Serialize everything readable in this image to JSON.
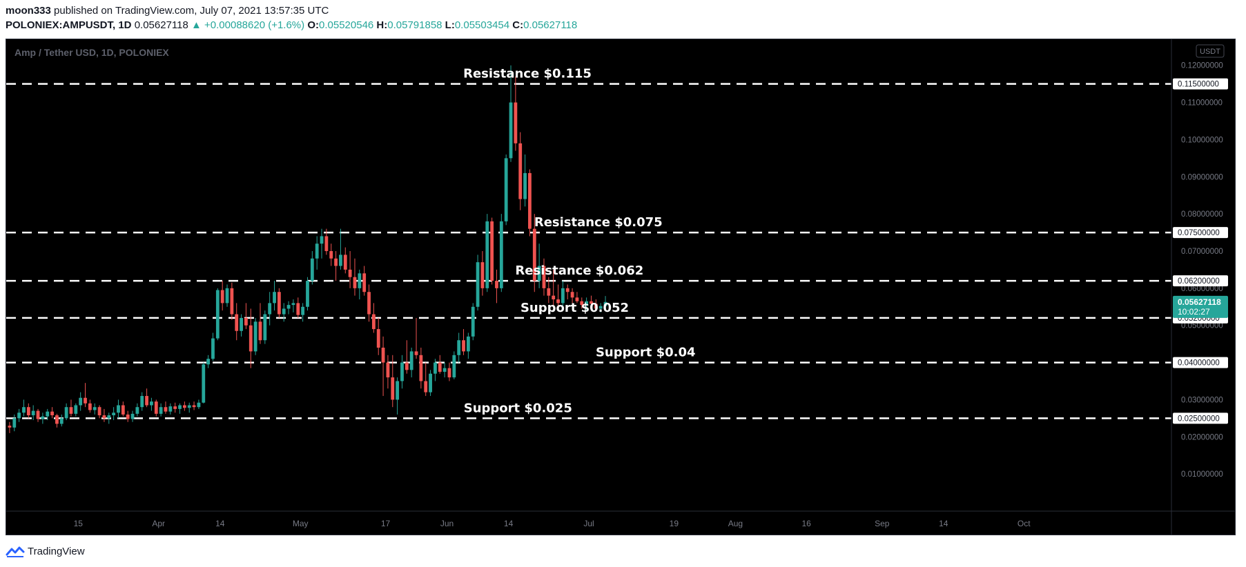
{
  "header": {
    "author": "moon333",
    "published_text": "published on TradingView.com, July 07, 2021 13:57:35 UTC",
    "symbol": "POLONIEX:AMPUSDT, 1D",
    "last_price": "0.05627118",
    "change": "▲ +0.00088620 (+1.6%)",
    "o_label": "O:",
    "o_value": "0.05520546",
    "h_label": "H:",
    "h_value": "0.05791858",
    "l_label": "L:",
    "l_value": "0.05503454",
    "c_label": "C:",
    "c_value": "0.05627118"
  },
  "footer": {
    "brand": "TradingView",
    "logo_icon": "tradingview-logo-icon"
  },
  "colors": {
    "background": "#000000",
    "up": "#26a69a",
    "down": "#ef5350",
    "axis_text": "#787b86",
    "level_line": "#ffffff",
    "price_tag_bg": "#26a69a"
  },
  "chart_data": {
    "type": "candlestick",
    "title": "Amp / Tether USD, 1D, POLONIEX",
    "currency_badge": "USDT",
    "xlabel": "",
    "ylabel": "",
    "ylim": [
      0.0,
      0.127
    ],
    "grid": false,
    "y_ticks": [
      "0.01000000",
      "0.02000000",
      "0.03000000",
      "0.04000000",
      "0.05000000",
      "0.06000000",
      "0.07000000",
      "0.08000000",
      "0.09000000",
      "0.10000000",
      "0.11000000",
      "0.12000000"
    ],
    "x_ticks": [
      {
        "label": "15",
        "day": 15
      },
      {
        "label": "Apr",
        "day": 32
      },
      {
        "label": "14",
        "day": 45
      },
      {
        "label": "May",
        "day": 62
      },
      {
        "label": "17",
        "day": 80
      },
      {
        "label": "Jun",
        "day": 93
      },
      {
        "label": "14",
        "day": 106
      },
      {
        "label": "Jul",
        "day": 123
      },
      {
        "label": "19",
        "day": 141
      },
      {
        "label": "Aug",
        "day": 154
      },
      {
        "label": "16",
        "day": 169
      },
      {
        "label": "Sep",
        "day": 185
      },
      {
        "label": "14",
        "day": 198
      },
      {
        "label": "Oct",
        "day": 215
      }
    ],
    "date_axis_origin": "Mar 1",
    "levels": [
      {
        "label": "Resistance $0.115",
        "price": 0.115,
        "tag": "0.11500000",
        "label_day": 110
      },
      {
        "label": "Resistance $0.075",
        "price": 0.075,
        "tag": "0.07500000",
        "label_day": 125
      },
      {
        "label": "Resistance $0.062",
        "price": 0.062,
        "tag": "0.06200000",
        "label_day": 121
      },
      {
        "label": "Support $0.052",
        "price": 0.052,
        "tag": "0.05200000",
        "label_day": 120
      },
      {
        "label": "Support $0.04",
        "price": 0.04,
        "tag": "0.04000000",
        "label_day": 135
      },
      {
        "label": "Support $0.025",
        "price": 0.025,
        "tag": "0.02500000",
        "label_day": 108
      }
    ],
    "current_price_tag": {
      "price": 0.05627118,
      "line1": "0.05627118",
      "line2": "10:02:27"
    },
    "candles": [
      [
        0.023,
        0.024,
        0.021,
        0.0225
      ],
      [
        0.0225,
        0.026,
        0.0215,
        0.025
      ],
      [
        0.025,
        0.0275,
        0.024,
        0.0265
      ],
      [
        0.0265,
        0.03,
        0.0255,
        0.028
      ],
      [
        0.028,
        0.029,
        0.025,
        0.0258
      ],
      [
        0.0258,
        0.0285,
        0.0245,
        0.027
      ],
      [
        0.027,
        0.0275,
        0.024,
        0.0248
      ],
      [
        0.0248,
        0.0265,
        0.0235,
        0.0255
      ],
      [
        0.0255,
        0.0275,
        0.0245,
        0.0268
      ],
      [
        0.0268,
        0.028,
        0.025,
        0.0258
      ],
      [
        0.0258,
        0.0262,
        0.0225,
        0.0235
      ],
      [
        0.0235,
        0.026,
        0.0228,
        0.025
      ],
      [
        0.025,
        0.029,
        0.0245,
        0.028
      ],
      [
        0.028,
        0.03,
        0.0255,
        0.0262
      ],
      [
        0.0262,
        0.029,
        0.0255,
        0.0285
      ],
      [
        0.0285,
        0.032,
        0.027,
        0.0305
      ],
      [
        0.0305,
        0.0345,
        0.028,
        0.029
      ],
      [
        0.029,
        0.03,
        0.0265,
        0.0272
      ],
      [
        0.0272,
        0.029,
        0.026,
        0.028
      ],
      [
        0.028,
        0.0285,
        0.025,
        0.0258
      ],
      [
        0.0258,
        0.0275,
        0.024,
        0.025
      ],
      [
        0.025,
        0.0265,
        0.0235,
        0.0258
      ],
      [
        0.0258,
        0.028,
        0.0245,
        0.0265
      ],
      [
        0.0265,
        0.03,
        0.025,
        0.0285
      ],
      [
        0.0285,
        0.0295,
        0.0255,
        0.026
      ],
      [
        0.026,
        0.027,
        0.024,
        0.0248
      ],
      [
        0.0248,
        0.027,
        0.024,
        0.0262
      ],
      [
        0.0262,
        0.029,
        0.0255,
        0.028
      ],
      [
        0.028,
        0.032,
        0.027,
        0.031
      ],
      [
        0.031,
        0.033,
        0.028,
        0.0285
      ],
      [
        0.0285,
        0.0305,
        0.027,
        0.0295
      ],
      [
        0.0295,
        0.03,
        0.0255,
        0.0262
      ],
      [
        0.0262,
        0.029,
        0.0255,
        0.028
      ],
      [
        0.028,
        0.0295,
        0.0262,
        0.0268
      ],
      [
        0.0268,
        0.029,
        0.026,
        0.0282
      ],
      [
        0.0282,
        0.0292,
        0.0265,
        0.0275
      ],
      [
        0.0275,
        0.029,
        0.0262,
        0.0285
      ],
      [
        0.0285,
        0.0295,
        0.027,
        0.0278
      ],
      [
        0.0278,
        0.0292,
        0.0265,
        0.0285
      ],
      [
        0.0285,
        0.0295,
        0.0272,
        0.028
      ],
      [
        0.028,
        0.03,
        0.0275,
        0.0292
      ],
      [
        0.0292,
        0.04,
        0.029,
        0.0395
      ],
      [
        0.0395,
        0.042,
        0.0385,
        0.041
      ],
      [
        0.041,
        0.048,
        0.0405,
        0.0465
      ],
      [
        0.0465,
        0.06,
        0.046,
        0.0595
      ],
      [
        0.0595,
        0.062,
        0.054,
        0.056
      ],
      [
        0.056,
        0.061,
        0.055,
        0.06
      ],
      [
        0.06,
        0.0615,
        0.0515,
        0.053
      ],
      [
        0.053,
        0.056,
        0.046,
        0.0485
      ],
      [
        0.0485,
        0.053,
        0.047,
        0.052
      ],
      [
        0.052,
        0.056,
        0.049,
        0.05
      ],
      [
        0.05,
        0.0545,
        0.0385,
        0.043
      ],
      [
        0.043,
        0.052,
        0.042,
        0.051
      ],
      [
        0.051,
        0.056,
        0.045,
        0.046
      ],
      [
        0.046,
        0.054,
        0.045,
        0.053
      ],
      [
        0.053,
        0.059,
        0.05,
        0.056
      ],
      [
        0.056,
        0.062,
        0.054,
        0.059
      ],
      [
        0.059,
        0.06,
        0.052,
        0.053
      ],
      [
        0.053,
        0.056,
        0.051,
        0.0545
      ],
      [
        0.0545,
        0.0565,
        0.053,
        0.0555
      ],
      [
        0.0555,
        0.057,
        0.0535,
        0.056
      ],
      [
        0.056,
        0.0575,
        0.052,
        0.0528
      ],
      [
        0.0528,
        0.056,
        0.051,
        0.055
      ],
      [
        0.055,
        0.063,
        0.054,
        0.062
      ],
      [
        0.062,
        0.07,
        0.061,
        0.068
      ],
      [
        0.068,
        0.074,
        0.065,
        0.072
      ],
      [
        0.072,
        0.076,
        0.068,
        0.074
      ],
      [
        0.074,
        0.076,
        0.069,
        0.07
      ],
      [
        0.07,
        0.072,
        0.066,
        0.068
      ],
      [
        0.068,
        0.07,
        0.062,
        0.066
      ],
      [
        0.066,
        0.076,
        0.065,
        0.069
      ],
      [
        0.069,
        0.071,
        0.064,
        0.065
      ],
      [
        0.065,
        0.07,
        0.06,
        0.063
      ],
      [
        0.063,
        0.068,
        0.058,
        0.06
      ],
      [
        0.06,
        0.065,
        0.057,
        0.064
      ],
      [
        0.064,
        0.066,
        0.058,
        0.059
      ],
      [
        0.059,
        0.061,
        0.051,
        0.053
      ],
      [
        0.053,
        0.056,
        0.048,
        0.049
      ],
      [
        0.049,
        0.052,
        0.042,
        0.044
      ],
      [
        0.044,
        0.047,
        0.031,
        0.04
      ],
      [
        0.04,
        0.042,
        0.033,
        0.036
      ],
      [
        0.036,
        0.042,
        0.028,
        0.03
      ],
      [
        0.03,
        0.036,
        0.026,
        0.035
      ],
      [
        0.035,
        0.042,
        0.033,
        0.04
      ],
      [
        0.04,
        0.046,
        0.037,
        0.038
      ],
      [
        0.038,
        0.044,
        0.036,
        0.043
      ],
      [
        0.043,
        0.052,
        0.041,
        0.042
      ],
      [
        0.042,
        0.044,
        0.033,
        0.035
      ],
      [
        0.035,
        0.04,
        0.031,
        0.032
      ],
      [
        0.032,
        0.038,
        0.031,
        0.037
      ],
      [
        0.037,
        0.041,
        0.035,
        0.04
      ],
      [
        0.04,
        0.042,
        0.037,
        0.0375
      ],
      [
        0.0375,
        0.04,
        0.036,
        0.0385
      ],
      [
        0.0385,
        0.04,
        0.035,
        0.036
      ],
      [
        0.036,
        0.043,
        0.0355,
        0.042
      ],
      [
        0.042,
        0.048,
        0.04,
        0.046
      ],
      [
        0.046,
        0.049,
        0.042,
        0.043
      ],
      [
        0.043,
        0.048,
        0.041,
        0.047
      ],
      [
        0.047,
        0.056,
        0.046,
        0.055
      ],
      [
        0.055,
        0.069,
        0.054,
        0.067
      ],
      [
        0.067,
        0.07,
        0.058,
        0.06
      ],
      [
        0.06,
        0.08,
        0.059,
        0.078
      ],
      [
        0.078,
        0.079,
        0.061,
        0.062
      ],
      [
        0.062,
        0.065,
        0.056,
        0.06
      ],
      [
        0.06,
        0.08,
        0.059,
        0.078
      ],
      [
        0.078,
        0.096,
        0.077,
        0.095
      ],
      [
        0.095,
        0.12,
        0.094,
        0.11
      ],
      [
        0.11,
        0.117,
        0.097,
        0.099
      ],
      [
        0.099,
        0.102,
        0.081,
        0.084
      ],
      [
        0.084,
        0.096,
        0.082,
        0.091
      ],
      [
        0.091,
        0.092,
        0.074,
        0.076
      ],
      [
        0.076,
        0.08,
        0.059,
        0.062
      ],
      [
        0.062,
        0.072,
        0.06,
        0.066
      ],
      [
        0.066,
        0.068,
        0.058,
        0.06
      ],
      [
        0.06,
        0.063,
        0.056,
        0.058
      ],
      [
        0.058,
        0.065,
        0.055,
        0.057
      ],
      [
        0.057,
        0.061,
        0.054,
        0.056
      ],
      [
        0.056,
        0.062,
        0.055,
        0.06
      ],
      [
        0.06,
        0.061,
        0.057,
        0.059
      ],
      [
        0.059,
        0.06,
        0.056,
        0.0575
      ],
      [
        0.0575,
        0.059,
        0.056,
        0.0565
      ],
      [
        0.0565,
        0.0575,
        0.0545,
        0.0555
      ],
      [
        0.0555,
        0.0575,
        0.054,
        0.0565
      ],
      [
        0.0565,
        0.058,
        0.055,
        0.0558
      ],
      [
        0.0558,
        0.057,
        0.054,
        0.0545
      ],
      [
        0.0545,
        0.056,
        0.0535,
        0.0552
      ],
      [
        0.0552,
        0.0579,
        0.055,
        0.0563
      ]
    ]
  }
}
